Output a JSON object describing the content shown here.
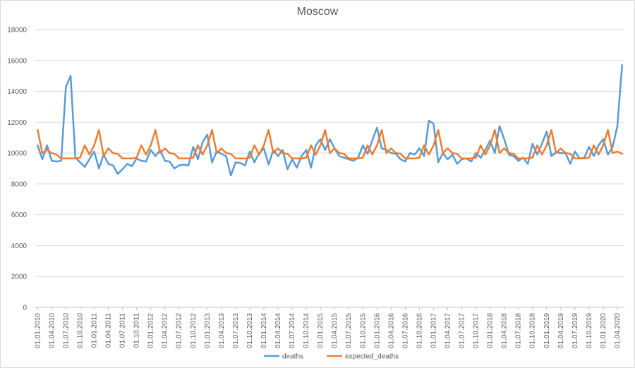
{
  "chart_data": {
    "type": "line",
    "title": "Moscow",
    "xlabel": "",
    "ylabel": "",
    "ylim": [
      0,
      18000
    ],
    "yticks": [
      0,
      2000,
      4000,
      6000,
      8000,
      10000,
      12000,
      14000,
      16000,
      18000
    ],
    "x_tick_labels": [
      "01.01.2010",
      "01.04.2010",
      "01.07.2010",
      "01.10.2010",
      "01.01.2011",
      "01.04.2011",
      "01.07.2011",
      "01.10.2011",
      "01.01.2012",
      "01.04.2012",
      "01.07.2012",
      "01.10.2012",
      "01.01.2013",
      "01.04.2013",
      "01.07.2013",
      "01.10.2013",
      "01.01.2014",
      "01.04.2014",
      "01.07.2014",
      "01.10.2014",
      "01.01.2015",
      "01.04.2015",
      "01.07.2015",
      "01.10.2015",
      "01.01.2016",
      "01.04.2016",
      "01.07.2016",
      "01.10.2016",
      "01.01.2017",
      "01.04.2017",
      "01.07.2017",
      "01.10.2017",
      "01.01.2018",
      "01.04.2018",
      "01.07.2018",
      "01.10.2018",
      "01.01.2019",
      "01.04.2019",
      "01.07.2019",
      "01.10.2019",
      "01.01.2020",
      "01.04.2020"
    ],
    "x_start": "2010-01",
    "x_end": "2020-04",
    "grid": true,
    "legend_position": "bottom",
    "series": [
      {
        "name": "deaths",
        "color": "#5b9bd5",
        "values": [
          10500,
          9600,
          10500,
          9500,
          9450,
          9500,
          14300,
          15000,
          9700,
          9400,
          9100,
          9600,
          10100,
          9000,
          9900,
          9300,
          9200,
          8650,
          8950,
          9300,
          9150,
          9650,
          9500,
          9450,
          10200,
          9800,
          10200,
          9500,
          9450,
          9000,
          9200,
          9250,
          9200,
          10400,
          9600,
          10700,
          11200,
          9400,
          10100,
          9950,
          9800,
          8550,
          9400,
          9350,
          9200,
          10100,
          9400,
          10000,
          10300,
          9250,
          10200,
          9800,
          10200,
          8950,
          9600,
          9050,
          9800,
          10200,
          9050,
          10500,
          10900,
          10200,
          10900,
          10300,
          9800,
          9700,
          9600,
          9500,
          9700,
          10500,
          9950,
          10800,
          11650,
          10300,
          10200,
          10000,
          9950,
          9600,
          9450,
          10000,
          9900,
          10300,
          9800,
          12100,
          11900,
          9400,
          10000,
          9600,
          9900,
          9300,
          9600,
          9650,
          9450,
          10000,
          9700,
          10200,
          10800,
          10000,
          11750,
          10900,
          9900,
          9800,
          9500,
          9700,
          9300,
          10600,
          9900,
          10600,
          11400,
          9800,
          10050,
          10000,
          10000,
          9300,
          10100,
          9650,
          9700,
          10400,
          9800,
          10500,
          10900,
          9900,
          10400,
          11750,
          15700
        ]
      },
      {
        "name": "expected_deaths",
        "color": "#ed7d31",
        "values": [
          11500,
          10000,
          10200,
          10000,
          9900,
          9650,
          9650,
          9650,
          9650,
          9700,
          10500,
          9900,
          10500,
          11500,
          9800,
          10300,
          10000,
          9950,
          9650,
          9650,
          9650,
          9700,
          10500,
          9900,
          10500,
          11500,
          10000,
          10300,
          10000,
          9950,
          9650,
          9650,
          9650,
          9700,
          10500,
          9900,
          10500,
          11500,
          10000,
          10300,
          10000,
          9950,
          9650,
          9650,
          9650,
          9700,
          10500,
          9900,
          10500,
          11500,
          10000,
          10300,
          10000,
          9950,
          9650,
          9650,
          9650,
          9700,
          10500,
          9900,
          10500,
          11500,
          10000,
          10300,
          10000,
          9950,
          9650,
          9650,
          9650,
          9700,
          10500,
          9900,
          10500,
          11500,
          10000,
          10300,
          10000,
          9950,
          9650,
          9650,
          9650,
          9700,
          10500,
          9900,
          10500,
          11500,
          10000,
          10300,
          10000,
          9950,
          9650,
          9650,
          9650,
          9700,
          10500,
          9900,
          10500,
          11500,
          10000,
          10300,
          10000,
          9950,
          9650,
          9650,
          9650,
          9700,
          10500,
          9900,
          10500,
          11500,
          10000,
          10300,
          10000,
          9950,
          9650,
          9650,
          9650,
          9700,
          10500,
          9900,
          10500,
          11500,
          10000,
          10100,
          9950
        ]
      }
    ]
  }
}
